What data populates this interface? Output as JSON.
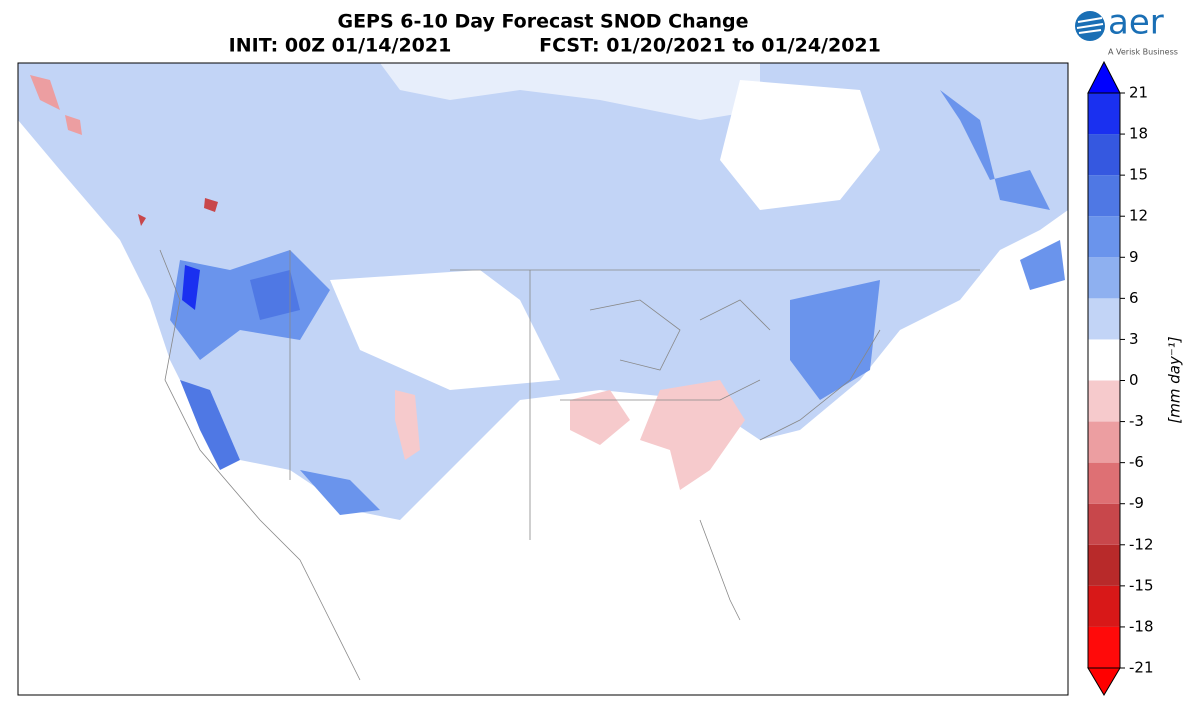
{
  "header": {
    "title": "GEPS 6-10 Day Forecast SNOD Change",
    "init": "INIT: 00Z 01/14/2021",
    "forecast": "FCST: 01/20/2021 to 01/24/2021"
  },
  "logo": {
    "name": "aer",
    "tagline": "A Verisk Business"
  },
  "colorbar": {
    "label": "[mm day⁻¹]",
    "levels": [
      -21,
      -18,
      -15,
      -12,
      -9,
      -6,
      -3,
      0,
      3,
      6,
      9,
      12,
      15,
      18,
      21
    ],
    "colors": [
      "#ff0a0a",
      "#d81818",
      "#b82a2a",
      "#c8474b",
      "#de7074",
      "#ec9ea1",
      "#f6cacc",
      "#ffffff",
      "#c2d4f6",
      "#8eb0f0",
      "#6a94ec",
      "#4f78e4",
      "#3558e0",
      "#1a30f0"
    ],
    "under_color": "#ff0000",
    "over_color": "#0000ff"
  }
}
